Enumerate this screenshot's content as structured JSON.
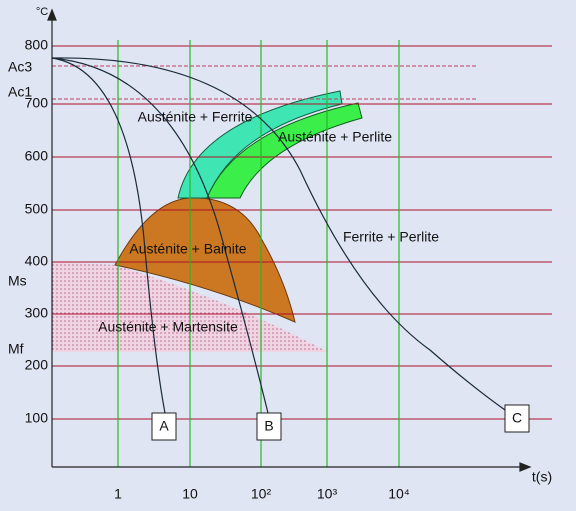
{
  "axes": {
    "y_unit": "°C",
    "x_label": "t(s)",
    "y_ticks": [
      "800",
      "700",
      "600",
      "500",
      "400",
      "300",
      "200",
      "100"
    ],
    "x_ticks": [
      "1",
      "10",
      "10²",
      "10³",
      "10⁴"
    ]
  },
  "levels": [
    "Ac3",
    "Ac1",
    "Ms",
    "Mf"
  ],
  "regions": [
    "Austénite + Ferrite",
    "Austénite + Perlite",
    "Austénite + Bainite",
    "Ferrite + Perlite",
    "Austénite + Martensite"
  ],
  "curves": [
    "A",
    "B",
    "C"
  ]
}
